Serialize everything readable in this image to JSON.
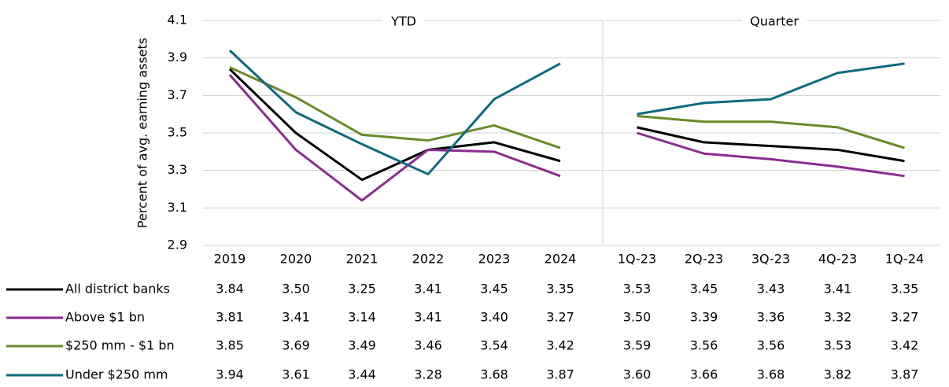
{
  "chart_data": [
    {
      "type": "line",
      "title": "YTD",
      "ylabel": "Percent of avg. earning assets",
      "categories": [
        "2019",
        "2020",
        "2021",
        "2022",
        "2023",
        "2024"
      ],
      "ylim": [
        2.9,
        4.1
      ],
      "yticks": [
        2.9,
        3.1,
        3.3,
        3.5,
        3.7,
        3.9,
        4.1
      ],
      "grid": true,
      "series": [
        {
          "name": "All district banks",
          "color": "#000000",
          "values": [
            3.84,
            3.5,
            3.25,
            3.41,
            3.45,
            3.35
          ],
          "value_labels": [
            "3.84",
            "3.50",
            "3.25",
            "3.41",
            "3.45",
            "3.35"
          ]
        },
        {
          "name": "Above $1 bn",
          "color": "#8b2c8f",
          "values": [
            3.81,
            3.41,
            3.14,
            3.41,
            3.4,
            3.27
          ],
          "value_labels": [
            "3.81",
            "3.41",
            "3.14",
            "3.41",
            "3.40",
            "3.27"
          ]
        },
        {
          "name": "$250 mm - $1 bn",
          "color": "#6a8a2c",
          "values": [
            3.85,
            3.69,
            3.49,
            3.46,
            3.54,
            3.42
          ],
          "value_labels": [
            "3.85",
            "3.69",
            "3.49",
            "3.46",
            "3.54",
            "3.42"
          ]
        },
        {
          "name": "Under $250 mm",
          "color": "#0e6a7e",
          "values": [
            3.94,
            3.61,
            3.44,
            3.28,
            3.68,
            3.87
          ],
          "value_labels": [
            "3.94",
            "3.61",
            "3.44",
            "3.28",
            "3.68",
            "3.87"
          ]
        }
      ]
    },
    {
      "type": "line",
      "title": "Quarter",
      "categories": [
        "1Q-23",
        "2Q-23",
        "3Q-23",
        "4Q-23",
        "1Q-24"
      ],
      "ylim": [
        2.9,
        4.1
      ],
      "yticks": [
        2.9,
        3.1,
        3.3,
        3.5,
        3.7,
        3.9,
        4.1
      ],
      "grid": true,
      "series": [
        {
          "color": "#000000",
          "values": [
            3.53,
            3.45,
            3.43,
            3.41,
            3.35
          ],
          "value_labels": [
            "3.53",
            "3.45",
            "3.43",
            "3.41",
            "3.35"
          ]
        },
        {
          "color": "#8b2c8f",
          "values": [
            3.5,
            3.39,
            3.36,
            3.32,
            3.27
          ],
          "value_labels": [
            "3.50",
            "3.39",
            "3.36",
            "3.32",
            "3.27"
          ]
        },
        {
          "color": "#6a8a2c",
          "values": [
            3.59,
            3.56,
            3.56,
            3.53,
            3.42
          ],
          "value_labels": [
            "3.59",
            "3.56",
            "3.56",
            "3.53",
            "3.42"
          ]
        },
        {
          "color": "#0e6a7e",
          "values": [
            3.6,
            3.66,
            3.68,
            3.82,
            3.87
          ],
          "value_labels": [
            "3.60",
            "3.66",
            "3.68",
            "3.82",
            "3.87"
          ]
        }
      ]
    }
  ]
}
